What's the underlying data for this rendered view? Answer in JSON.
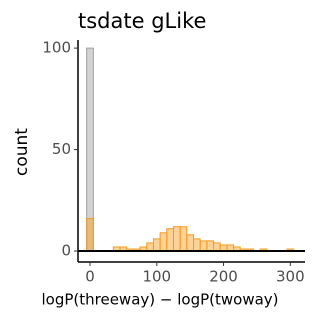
{
  "chart_data": {
    "type": "histogram",
    "title": "tsdate gLike",
    "x_label": "logP(threeway) − logP(twoway)",
    "y_label": "count",
    "xlim": [
      -18,
      322
    ],
    "ylim": [
      -5.4,
      104
    ],
    "xticks": [
      0,
      100,
      200,
      300
    ],
    "yticks": [
      0,
      50,
      100
    ],
    "hline": 0,
    "series": [
      {
        "color": "#9e9e9e",
        "bins": [
          -5,
          5
        ],
        "counts": [
          100
        ]
      },
      {
        "color": "#f59b1f",
        "bins": [
          -5,
          5,
          15,
          25,
          35,
          45,
          55,
          65,
          75,
          85,
          95,
          105,
          115,
          125,
          135,
          145,
          155,
          165,
          175,
          185,
          195,
          205,
          215,
          225,
          235,
          245,
          255,
          265,
          275,
          285,
          295,
          305
        ],
        "counts": [
          16,
          0,
          0,
          0,
          2,
          2,
          1,
          1,
          2,
          4,
          6,
          9,
          11,
          12,
          12,
          8,
          6,
          5,
          5,
          4,
          3,
          3,
          2,
          1,
          1,
          0,
          1,
          0,
          0,
          0,
          1
        ]
      }
    ]
  }
}
